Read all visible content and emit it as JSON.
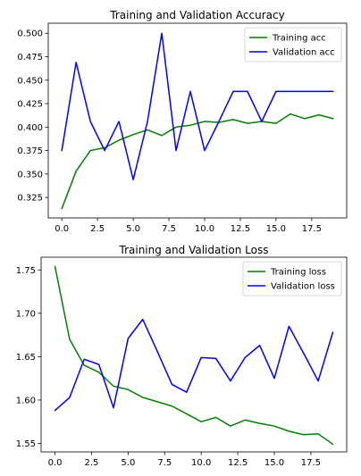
{
  "chart_data": [
    {
      "type": "line",
      "title": "Training and Validation Accuracy",
      "xlabel": "",
      "ylabel": "",
      "x": [
        0,
        1,
        2,
        3,
        4,
        5,
        6,
        7,
        8,
        9,
        10,
        11,
        12,
        13,
        14,
        15,
        16,
        17,
        18,
        19
      ],
      "xlim": [
        -0.95,
        19.95
      ],
      "ylim": [
        0.3032,
        0.5107
      ],
      "xticks": [
        0.0,
        2.5,
        5.0,
        7.5,
        10.0,
        12.5,
        15.0,
        17.5
      ],
      "xtick_labels": [
        "0.0",
        "2.5",
        "5.0",
        "7.5",
        "10.0",
        "12.5",
        "15.0",
        "17.5"
      ],
      "yticks": [
        0.325,
        0.35,
        0.375,
        0.4,
        0.425,
        0.45,
        0.475,
        0.5
      ],
      "ytick_labels": [
        "0.325",
        "0.350",
        "0.375",
        "0.400",
        "0.425",
        "0.450",
        "0.475",
        "0.500"
      ],
      "grid": false,
      "legend_position": "top-right",
      "series": [
        {
          "name": "Training acc",
          "color": "#008000",
          "values": [
            0.313,
            0.353,
            0.375,
            0.378,
            0.386,
            0.392,
            0.397,
            0.391,
            0.4,
            0.402,
            0.406,
            0.405,
            0.408,
            0.404,
            0.406,
            0.404,
            0.414,
            0.409,
            0.413,
            0.409
          ]
        },
        {
          "name": "Validation acc",
          "color": "#0000ff",
          "values": [
            0.375,
            0.469,
            0.406,
            0.375,
            0.406,
            0.344,
            0.406,
            0.5,
            0.375,
            0.438,
            0.375,
            0.406,
            0.438,
            0.438,
            0.406,
            0.438,
            0.438,
            0.438,
            0.438,
            0.438
          ]
        }
      ]
    },
    {
      "type": "line",
      "title": "Training and Validation Loss",
      "xlabel": "",
      "ylabel": "",
      "x": [
        0,
        1,
        2,
        3,
        4,
        5,
        6,
        7,
        8,
        9,
        10,
        11,
        12,
        13,
        14,
        15,
        16,
        17,
        18,
        19
      ],
      "xlim": [
        -0.95,
        19.95
      ],
      "ylim": [
        1.5402,
        1.7647
      ],
      "xticks": [
        0.0,
        2.5,
        5.0,
        7.5,
        10.0,
        12.5,
        15.0,
        17.5
      ],
      "xtick_labels": [
        "0.0",
        "2.5",
        "5.0",
        "7.5",
        "10.0",
        "12.5",
        "15.0",
        "17.5"
      ],
      "yticks": [
        1.55,
        1.6,
        1.65,
        1.7,
        1.75
      ],
      "ytick_labels": [
        "1.55",
        "1.60",
        "1.65",
        "1.70",
        "1.75"
      ],
      "grid": false,
      "legend_position": "top-right",
      "series": [
        {
          "name": "Training loss",
          "color": "#008000",
          "values": [
            1.754,
            1.67,
            1.64,
            1.632,
            1.616,
            1.612,
            1.603,
            1.598,
            1.593,
            1.584,
            1.575,
            1.58,
            1.57,
            1.577,
            1.573,
            1.57,
            1.564,
            1.56,
            1.561,
            1.549
          ]
        },
        {
          "name": "Validation loss",
          "color": "#0000ff",
          "values": [
            1.588,
            1.603,
            1.647,
            1.641,
            1.591,
            1.671,
            1.693,
            1.656,
            1.618,
            1.609,
            1.649,
            1.648,
            1.622,
            1.649,
            1.663,
            1.625,
            1.685,
            1.654,
            1.622,
            1.678
          ]
        }
      ]
    }
  ]
}
